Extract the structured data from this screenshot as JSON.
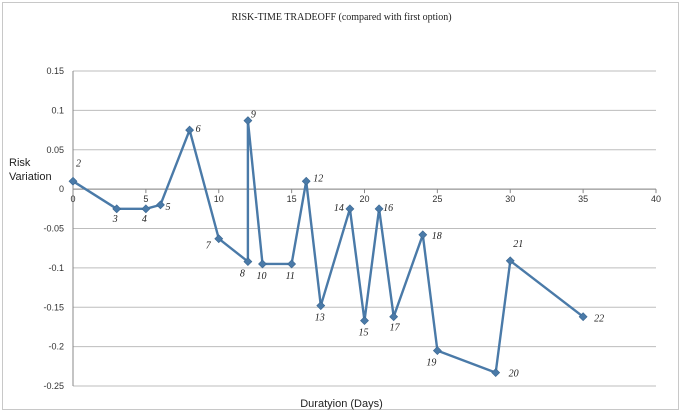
{
  "chart_data": {
    "type": "line",
    "title": "RISK-TIME  TRADEOFF (compared with first option)",
    "xlabel": "Duratyion (Days)",
    "ylabel": "Risk Variation",
    "xlim": [
      0,
      40
    ],
    "ylim": [
      -0.25,
      0.15
    ],
    "x_ticks": [
      0,
      5,
      10,
      15,
      20,
      25,
      30,
      35,
      40
    ],
    "y_ticks": [
      0.15,
      0.1,
      0.05,
      0,
      -0.05,
      -0.1,
      -0.15,
      -0.2,
      -0.25
    ],
    "y_tick_labels": [
      "0.15",
      "0.1",
      "0.05",
      "0",
      "-0.05",
      "-0.1",
      "-0.15",
      "-0.2",
      "-0.25"
    ],
    "grid": "horizontal",
    "series_color": "#4a7aa8",
    "points": [
      {
        "label": "2",
        "x": 0,
        "y": 0.01
      },
      {
        "label": "3",
        "x": 3,
        "y": -0.025
      },
      {
        "label": "4",
        "x": 5,
        "y": -0.025
      },
      {
        "label": "5",
        "x": 6,
        "y": -0.02
      },
      {
        "label": "6",
        "x": 8,
        "y": 0.075
      },
      {
        "label": "7",
        "x": 10,
        "y": -0.063
      },
      {
        "label": "8",
        "x": 12,
        "y": -0.092
      },
      {
        "label": "9",
        "x": 12,
        "y": 0.087
      },
      {
        "label": "10",
        "x": 13,
        "y": -0.095
      },
      {
        "label": "11",
        "x": 15,
        "y": -0.095
      },
      {
        "label": "12",
        "x": 16,
        "y": 0.01
      },
      {
        "label": "13",
        "x": 17,
        "y": -0.148
      },
      {
        "label": "14",
        "x": 19,
        "y": -0.025
      },
      {
        "label": "15",
        "x": 20,
        "y": -0.167
      },
      {
        "label": "16",
        "x": 21,
        "y": -0.025
      },
      {
        "label": "17",
        "x": 22,
        "y": -0.162
      },
      {
        "label": "18",
        "x": 24,
        "y": -0.058
      },
      {
        "label": "19",
        "x": 25,
        "y": -0.205
      },
      {
        "label": "20",
        "x": 29,
        "y": -0.233
      },
      {
        "label": "21",
        "x": 30,
        "y": -0.091
      },
      {
        "label": "22",
        "x": 35,
        "y": -0.162
      }
    ]
  }
}
